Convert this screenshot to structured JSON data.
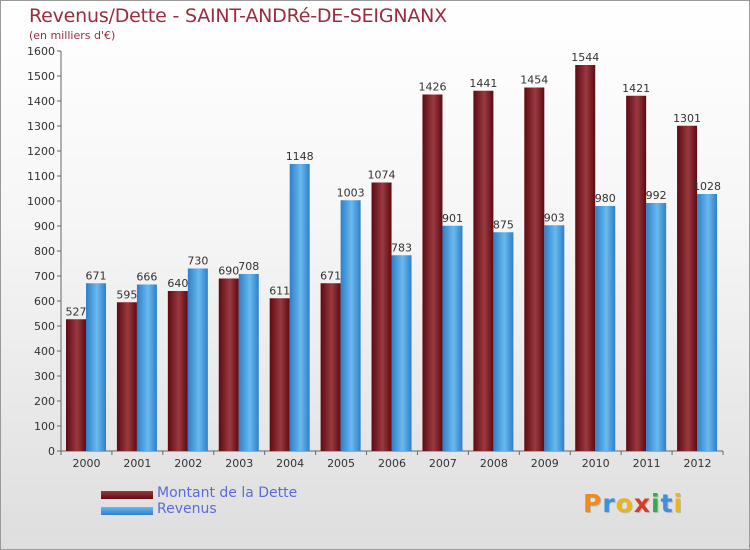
{
  "header": {
    "title": "Revenus/Dette - SAINT-ANDRé-DE-SEIGNANX",
    "subtitle": "(en milliers d'€)"
  },
  "brand": {
    "name": "Proxiti",
    "letter_colors": [
      "#f08a1c",
      "#3d8fe0",
      "#e8b51c",
      "#d83a2b",
      "#3aa84a",
      "#3d8fe0",
      "#e8b51c"
    ]
  },
  "colors": {
    "debt_dark": "#5e0a12",
    "debt_light": "#993a40",
    "revenue_dark": "#2e7fc8",
    "revenue_light": "#6ab9ef",
    "title": "#9c2b3e",
    "legend_text": "#5a6cd6"
  },
  "chart_data": {
    "type": "bar",
    "title": "Revenus/Dette - SAINT-ANDRé-DE-SEIGNANX",
    "subtitle": "(en milliers d'€)",
    "categories": [
      "2000",
      "2001",
      "2002",
      "2003",
      "2004",
      "2005",
      "2006",
      "2007",
      "2008",
      "2009",
      "2010",
      "2011",
      "2012"
    ],
    "series": [
      {
        "name": "Montant de la Dette",
        "values": [
          527,
          595,
          640,
          690,
          611,
          671,
          1074,
          1426,
          1441,
          1454,
          1544,
          1421,
          1301
        ]
      },
      {
        "name": "Revenus",
        "values": [
          671,
          666,
          730,
          708,
          1148,
          1003,
          783,
          901,
          875,
          903,
          980,
          992,
          1028
        ]
      }
    ],
    "ylim": [
      0,
      1600
    ],
    "yticks": [
      0,
      100,
      200,
      300,
      400,
      500,
      600,
      700,
      800,
      900,
      1000,
      1100,
      1200,
      1300,
      1400,
      1500,
      1600
    ],
    "grid": false,
    "legend_position": "bottom-left"
  }
}
